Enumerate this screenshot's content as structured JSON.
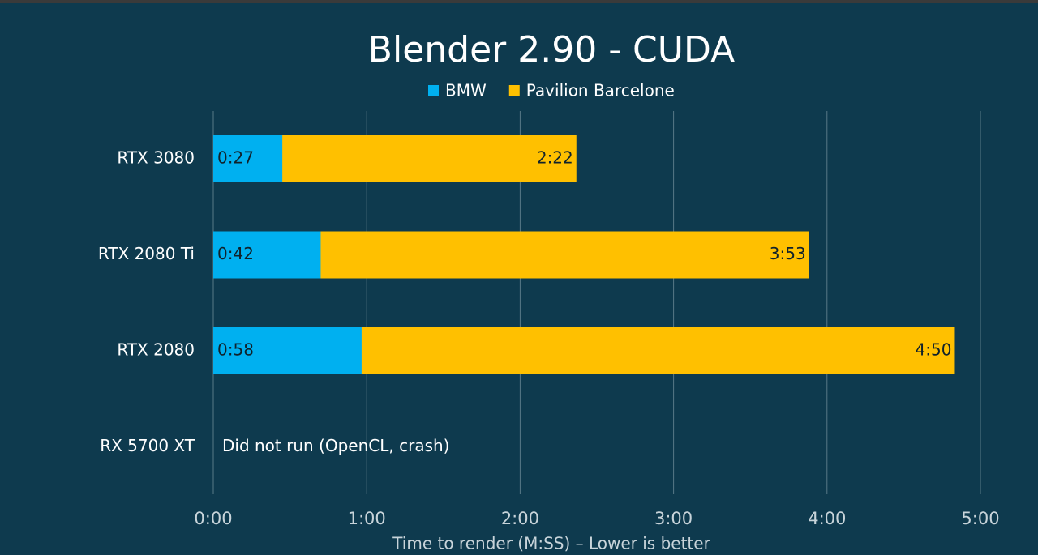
{
  "chart_data": {
    "type": "bar",
    "orientation": "horizontal",
    "overlap": true,
    "title": "Blender 2.90 - CUDA",
    "categories": [
      "RTX 3080",
      "RTX 2080 Ti",
      "RTX 2080",
      "RX 5700 XT"
    ],
    "series": [
      {
        "name": "BMW",
        "color": "#00b0f0",
        "values": [
          27,
          42,
          58,
          null
        ],
        "value_labels": [
          "0:27",
          "0:42",
          "0:58",
          null
        ]
      },
      {
        "name": "Pavilion Barcelone",
        "color": "#ffc000",
        "values": [
          142,
          233,
          290,
          null
        ],
        "value_labels": [
          "2:22",
          "3:53",
          "4:50",
          null
        ]
      }
    ],
    "annotation": "Did not run (OpenCL, crash)",
    "xlabel": "Time to render (M:SS) – Lower is better",
    "xlim": [
      0,
      300
    ],
    "xticks": [
      {
        "value": 0,
        "label": "0:00"
      },
      {
        "value": 60,
        "label": "1:00"
      },
      {
        "value": 120,
        "label": "2:00"
      },
      {
        "value": 180,
        "label": "3:00"
      },
      {
        "value": 240,
        "label": "4:00"
      },
      {
        "value": 300,
        "label": "5:00"
      }
    ],
    "grid": true
  }
}
